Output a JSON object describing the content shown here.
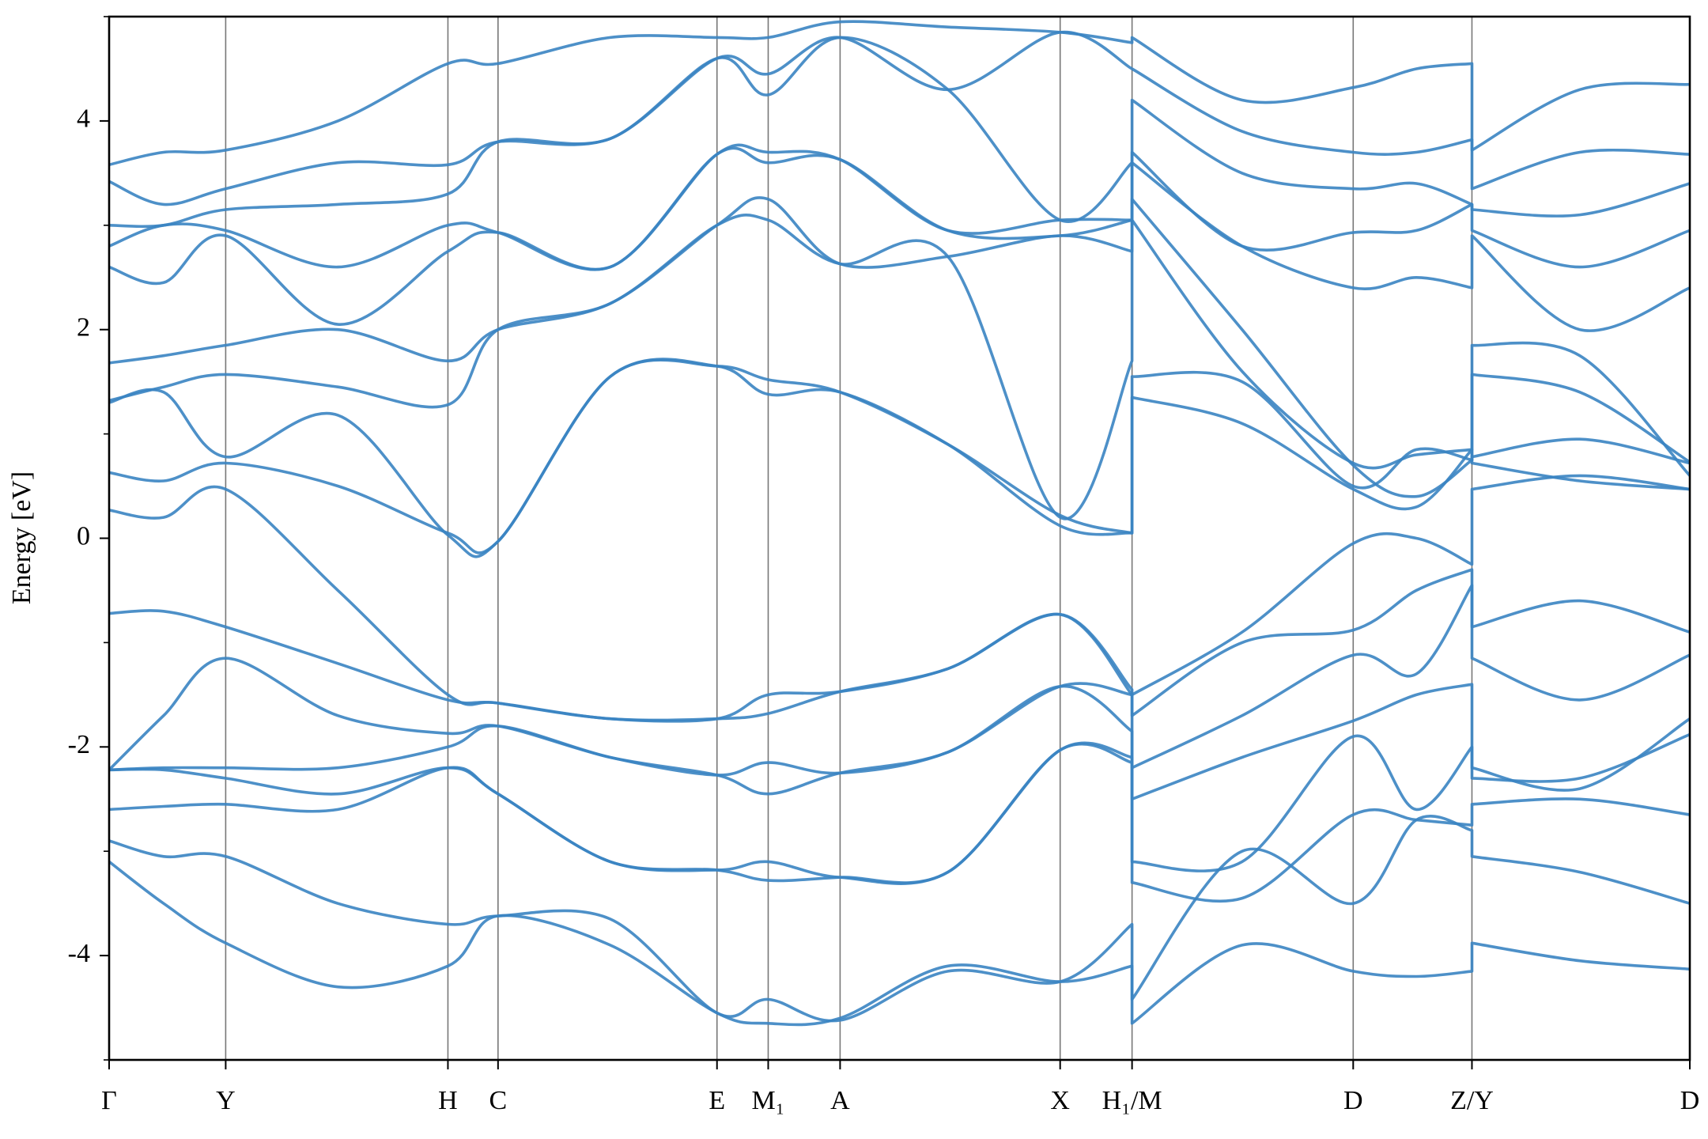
{
  "chart_data": {
    "type": "line",
    "y_label": "Energy [eV]",
    "xlim": [
      0,
      14.51
    ],
    "ylim": [
      -5,
      5
    ],
    "xticks": [
      {
        "value": 0,
        "label": "Γ"
      },
      {
        "value": 1.07,
        "label": "Y"
      },
      {
        "value": 3.11,
        "label": "H"
      },
      {
        "value": 3.57,
        "label": "C"
      },
      {
        "value": 5.58,
        "label": "E"
      },
      {
        "value": 6.05,
        "label": "M₁"
      },
      {
        "value": 6.71,
        "label": "A"
      },
      {
        "value": 8.73,
        "label": "X"
      },
      {
        "value": 9.39,
        "label": "H₁/M"
      },
      {
        "value": 11.42,
        "label": "D"
      },
      {
        "value": 12.51,
        "label": "Z/Y"
      },
      {
        "value": 14.51,
        "label": "D"
      }
    ],
    "yticks": [
      -4,
      -2,
      0,
      2,
      4
    ],
    "minor_yticks": [
      -5,
      -3,
      -1,
      1,
      3,
      5
    ],
    "xgrid": true,
    "color": "#3a84c2",
    "x": [
      0,
      0.5,
      1.07,
      2.1,
      3.11,
      3.57,
      4.6,
      5.58,
      6.05,
      6.71,
      7.7,
      8.73,
      9.39,
      9.39,
      10.4,
      11.42,
      12.0,
      12.51,
      12.51,
      13.5,
      14.51
    ],
    "series": [
      {
        "values": [
          -3.1,
          -3.5,
          -3.88,
          -4.3,
          -4.1,
          -3.62,
          -3.9,
          -4.55,
          -4.65,
          -4.6,
          -4.1,
          -4.25,
          -4.1,
          -4.65,
          -3.9,
          -4.15,
          -4.2,
          -4.15,
          -3.88,
          -4.05,
          -4.13
        ]
      },
      {
        "values": [
          -2.9,
          -3.05,
          -3.05,
          -3.5,
          -3.7,
          -3.62,
          -3.65,
          -4.55,
          -4.42,
          -4.62,
          -4.15,
          -4.25,
          -3.7,
          -4.42,
          -3.0,
          -3.5,
          -2.7,
          -2.8,
          -3.05,
          -3.2,
          -3.5
        ]
      },
      {
        "values": [
          -2.6,
          -2.57,
          -2.55,
          -2.6,
          -2.2,
          -2.45,
          -3.1,
          -3.18,
          -3.1,
          -3.25,
          -3.2,
          -2.03,
          -2.1,
          -3.3,
          -3.45,
          -2.65,
          -2.7,
          -2.75,
          -2.55,
          -2.5,
          -2.65
        ]
      },
      {
        "values": [
          -2.22,
          -2.22,
          -2.3,
          -2.45,
          -2.2,
          -2.45,
          -3.1,
          -3.18,
          -3.28,
          -3.25,
          -3.2,
          -2.03,
          -2.15,
          -3.1,
          -3.1,
          -1.9,
          -2.6,
          -2.0,
          -2.3,
          -2.3,
          -1.88
        ]
      },
      {
        "values": [
          -2.22,
          -2.2,
          -2.2,
          -2.2,
          -2.0,
          -1.8,
          -2.1,
          -2.27,
          -2.45,
          -2.25,
          -2.05,
          -1.42,
          -1.5,
          -2.5,
          -2.1,
          -1.75,
          -1.5,
          -1.4,
          -2.2,
          -2.4,
          -1.73
        ]
      },
      {
        "values": [
          -2.22,
          -1.7,
          -1.15,
          -1.7,
          -1.87,
          -1.8,
          -2.1,
          -2.27,
          -2.15,
          -2.25,
          -2.05,
          -1.42,
          -1.85,
          -2.2,
          -1.7,
          -1.12,
          -1.3,
          -0.45,
          -1.15,
          -1.55,
          -1.12
        ]
      },
      {
        "values": [
          -0.72,
          -0.7,
          -0.85,
          -1.2,
          -1.55,
          -1.58,
          -1.73,
          -1.73,
          -1.68,
          -1.47,
          -1.25,
          -0.73,
          -1.45,
          -1.7,
          -1.0,
          -0.88,
          -0.5,
          -0.3,
          -0.85,
          -0.6,
          -0.9
        ]
      },
      {
        "values": [
          0.27,
          0.2,
          0.47,
          -0.5,
          -1.5,
          -1.58,
          -1.73,
          -1.73,
          -1.5,
          -1.47,
          -1.25,
          -0.73,
          -1.5,
          -1.5,
          -0.9,
          -0.05,
          0.0,
          -0.25,
          0.47,
          0.6,
          0.47
        ]
      },
      {
        "values": [
          0.63,
          0.55,
          0.72,
          0.5,
          0.05,
          -0.03,
          1.55,
          1.65,
          1.38,
          1.4,
          0.9,
          0.12,
          0.05,
          1.35,
          1.1,
          0.47,
          0.3,
          0.85,
          0.72,
          0.55,
          0.47
        ]
      },
      {
        "values": [
          1.3,
          1.4,
          0.78,
          1.18,
          0.03,
          -0.03,
          1.55,
          1.65,
          1.52,
          1.4,
          0.9,
          0.22,
          0.05,
          1.55,
          1.5,
          0.5,
          0.85,
          0.75,
          0.78,
          0.95,
          0.72
        ]
      },
      {
        "values": [
          1.32,
          1.45,
          1.57,
          1.45,
          1.28,
          2.0,
          2.25,
          3.0,
          3.05,
          2.63,
          2.7,
          0.2,
          1.7,
          3.05,
          1.6,
          0.72,
          0.8,
          0.85,
          1.57,
          1.4,
          0.73
        ]
      },
      {
        "values": [
          1.68,
          1.75,
          1.85,
          2.0,
          1.7,
          2.0,
          2.25,
          3.0,
          3.25,
          2.63,
          2.7,
          2.9,
          2.75,
          3.25,
          2.0,
          0.7,
          0.4,
          0.75,
          1.85,
          1.75,
          0.6
        ]
      },
      {
        "values": [
          2.6,
          2.45,
          2.9,
          2.05,
          2.75,
          2.93,
          2.6,
          3.68,
          3.6,
          3.63,
          2.95,
          2.9,
          3.05,
          3.6,
          2.8,
          2.4,
          2.5,
          2.4,
          2.9,
          2.0,
          2.4
        ]
      },
      {
        "values": [
          2.8,
          3.0,
          2.95,
          2.6,
          3.0,
          2.93,
          2.6,
          3.68,
          3.7,
          3.63,
          2.95,
          3.05,
          3.05,
          3.7,
          2.8,
          2.93,
          2.95,
          3.2,
          2.95,
          2.6,
          2.95
        ]
      },
      {
        "values": [
          3.0,
          3.0,
          3.15,
          3.2,
          3.3,
          3.8,
          3.83,
          4.6,
          4.25,
          4.8,
          4.3,
          3.05,
          3.6,
          4.2,
          3.5,
          3.35,
          3.4,
          3.2,
          3.15,
          3.1,
          3.4
        ]
      },
      {
        "values": [
          3.42,
          3.2,
          3.35,
          3.6,
          3.58,
          3.8,
          3.83,
          4.6,
          4.45,
          4.8,
          4.3,
          4.85,
          4.5,
          4.5,
          3.9,
          3.7,
          3.7,
          3.82,
          3.35,
          3.7,
          3.68
        ]
      },
      {
        "values": [
          3.58,
          3.7,
          3.72,
          4.0,
          4.55,
          4.55,
          4.8,
          4.8,
          4.8,
          4.95,
          4.9,
          4.85,
          4.75,
          4.8,
          4.2,
          4.32,
          4.5,
          4.55,
          3.72,
          4.3,
          4.35
        ]
      }
    ]
  }
}
